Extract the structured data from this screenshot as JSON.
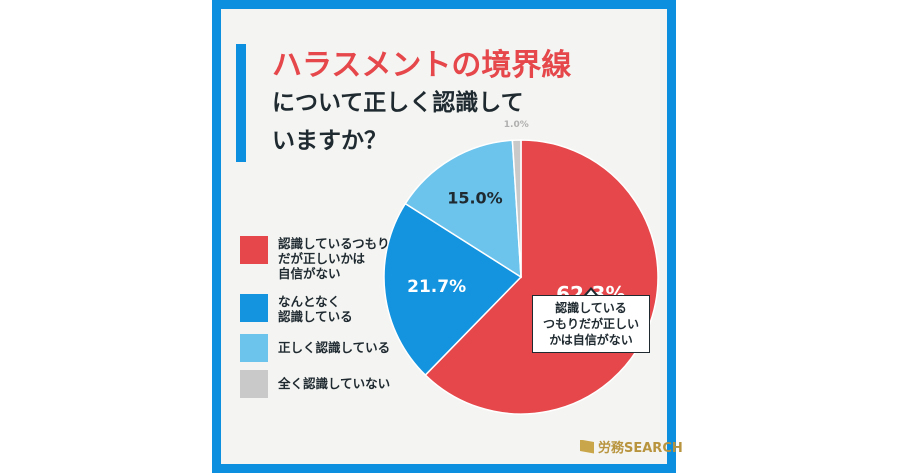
{
  "title": {
    "line1": "ハラスメントの境界線",
    "line2": "について正しく認識して",
    "line3": "いますか？"
  },
  "brand": "労務SEARCH",
  "callout": "認識している\nつもりだが正しい\nかは自信がない",
  "colors": {
    "frame": "#0d8fe0",
    "title_red": "#e5474b"
  },
  "chart_data": {
    "type": "pie",
    "title": "ハラスメントの境界線について正しく認識していますか？",
    "legend_position": "left",
    "slices": [
      {
        "label": "認識しているつもりだが正しいかは自信がない",
        "legend_label": "認識しているつもり\nだが正しいかは\n自信がない",
        "value": 62.3,
        "value_label": "62.3%",
        "color": "#e5474b"
      },
      {
        "label": "なんとなく認識している",
        "legend_label": "なんとなく\n認識している",
        "value": 21.7,
        "value_label": "21.7%",
        "color": "#1493de"
      },
      {
        "label": "正しく認識している",
        "legend_label": "正しく認識している",
        "value": 15.0,
        "value_label": "15.0%",
        "color": "#6cc3ec"
      },
      {
        "label": "全く認識していない",
        "legend_label": "全く認識していない",
        "value": 1.0,
        "value_label": "1.0%",
        "color": "#c9c9c9"
      }
    ]
  }
}
